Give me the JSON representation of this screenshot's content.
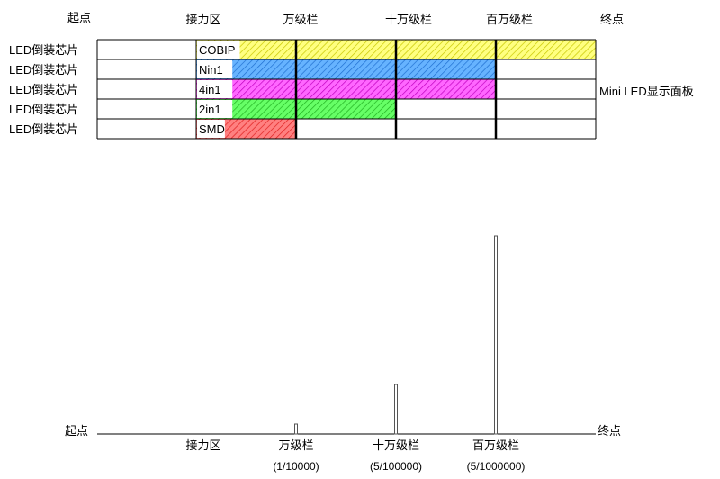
{
  "header": {
    "start": "起点",
    "relay": "接力区",
    "wan": "万级栏",
    "shiwan": "十万级栏",
    "baiwan": "百万级栏",
    "end": "终点"
  },
  "rows": [
    {
      "left_label": "LED倒装芯片",
      "tag": "COBIP",
      "color": "#ffff80",
      "hatch": "#c8c800",
      "reach": "end"
    },
    {
      "left_label": "LED倒装芯片",
      "tag": "Nin1",
      "color": "#66b3ff",
      "hatch": "#1f6fd0",
      "reach": "baiwan"
    },
    {
      "left_label": "LED倒装芯片",
      "tag": "4in1",
      "color": "#ff66ff",
      "hatch": "#c000c0",
      "reach": "baiwan"
    },
    {
      "left_label": "LED倒装芯片",
      "tag": "2in1",
      "color": "#66ff66",
      "hatch": "#20b020",
      "reach": "shiwan"
    },
    {
      "left_label": "LED倒装芯片",
      "tag": "SMD",
      "color": "#ff8080",
      "hatch": "#e02020",
      "reach": "wan"
    }
  ],
  "right_label": "Mini LED显示面板",
  "bottom": {
    "start": "起点",
    "end": "终点",
    "relay": "接力区",
    "wan": "万级栏",
    "shiwan": "十万级栏",
    "baiwan": "百万级栏",
    "wan_ratio": "(1/10000)",
    "shiwan_ratio": "(5/100000)",
    "baiwan_ratio": "(5/1000000)"
  },
  "bars": [
    {
      "stage": "wan",
      "level": 1
    },
    {
      "stage": "shiwan",
      "level": 5
    },
    {
      "stage": "baiwan",
      "level": 20
    }
  ]
}
